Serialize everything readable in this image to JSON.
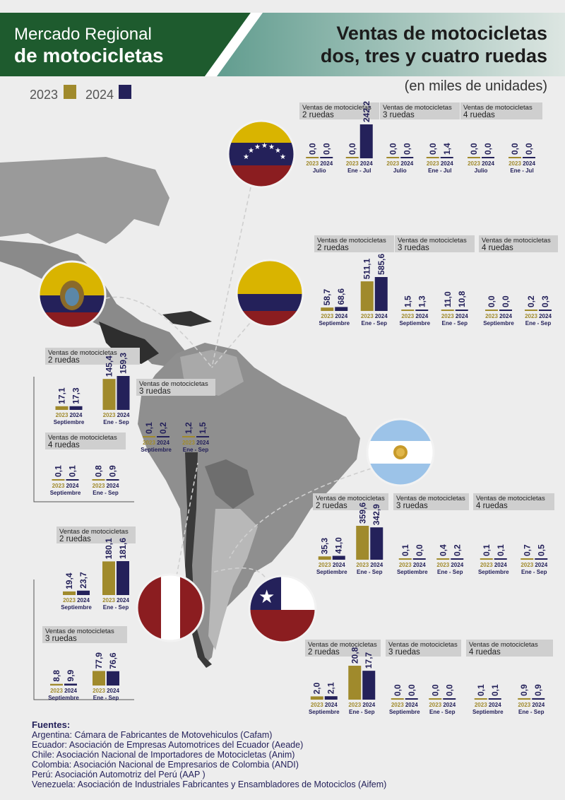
{
  "header": {
    "left_line1": "Mercado Regional",
    "left_line2": "de motocicletas",
    "right_line1": "Ventas de motocicletas",
    "right_line2": "dos, tres y cuatro ruedas",
    "subtitle": "(en miles de unidades)"
  },
  "legend": {
    "y2023": "2023",
    "y2024": "2024"
  },
  "colors": {
    "c2023": "#a08a2c",
    "c2024": "#24215a",
    "green": "#1e5b2e",
    "label_bg": "#cfcfcf",
    "axis_text": "#24215a"
  },
  "chart_data": [
    {
      "country": "Venezuela",
      "type": "bar",
      "groups": [
        {
          "title1": "Ventas de motocicletas",
          "title2": "2 ruedas",
          "periods": [
            {
              "label": "Julio",
              "v2023": "0,0",
              "v2024": "0,0",
              "n2023": 0.0,
              "n2024": 0.0
            },
            {
              "label": "Ene - Jul",
              "v2023": "0,0",
              "v2024": "242,2",
              "n2023": 0.0,
              "n2024": 242.2
            }
          ]
        },
        {
          "title1": "Ventas de motocicletas",
          "title2": "3 ruedas",
          "periods": [
            {
              "label": "Julio",
              "v2023": "0,0",
              "v2024": "0,0",
              "n2023": 0.0,
              "n2024": 0.0
            },
            {
              "label": "Ene - Jul",
              "v2023": "0,0",
              "v2024": "1,4",
              "n2023": 0.0,
              "n2024": 1.4
            }
          ]
        },
        {
          "title1": "Ventas de motocicletas",
          "title2": "4 ruedas",
          "periods": [
            {
              "label": "Julio",
              "v2023": "0,0",
              "v2024": "0,0",
              "n2023": 0.0,
              "n2024": 0.0
            },
            {
              "label": "Ene - Jul",
              "v2023": "0,0",
              "v2024": "0,0",
              "n2023": 0.0,
              "n2024": 0.0
            }
          ]
        }
      ]
    },
    {
      "country": "Colombia",
      "type": "bar",
      "groups": [
        {
          "title1": "Ventas de motocicletas",
          "title2": "2 ruedas",
          "periods": [
            {
              "label": "Septiembre",
              "v2023": "58,7",
              "v2024": "68,6",
              "n2023": 58.7,
              "n2024": 68.6
            },
            {
              "label": "Ene - Sep",
              "v2023": "511,1",
              "v2024": "585,6",
              "n2023": 511.1,
              "n2024": 585.6
            }
          ]
        },
        {
          "title1": "Ventas de motocicletas",
          "title2": "3 ruedas",
          "periods": [
            {
              "label": "Septiembre",
              "v2023": "1,5",
              "v2024": "1,3",
              "n2023": 1.5,
              "n2024": 1.3
            },
            {
              "label": "Ene - Sep",
              "v2023": "11,0",
              "v2024": "10,8",
              "n2023": 11.0,
              "n2024": 10.8
            }
          ]
        },
        {
          "title1": "Ventas de motocicletas",
          "title2": "4 ruedas",
          "periods": [
            {
              "label": "Septiembre",
              "v2023": "0,0",
              "v2024": "0,0",
              "n2023": 0.0,
              "n2024": 0.0
            },
            {
              "label": "Ene - Sep",
              "v2023": "0,2",
              "v2024": "0,3",
              "n2023": 0.2,
              "n2024": 0.3
            }
          ]
        }
      ]
    },
    {
      "country": "Ecuador",
      "type": "bar",
      "groups": [
        {
          "title1": "Ventas de motocicletas",
          "title2": "2 ruedas",
          "periods": [
            {
              "label": "Septiembre",
              "v2023": "17,1",
              "v2024": "17,3",
              "n2023": 17.1,
              "n2024": 17.3
            },
            {
              "label": "Ene - Sep",
              "v2023": "145,4",
              "v2024": "159,3",
              "n2023": 145.4,
              "n2024": 159.3
            }
          ]
        },
        {
          "title1": "Ventas de motocicletas",
          "title2": "3 ruedas",
          "periods": [
            {
              "label": "Septiembre",
              "v2023": "0,1",
              "v2024": "0,2",
              "n2023": 0.1,
              "n2024": 0.2
            },
            {
              "label": "Ene - Sep",
              "v2023": "1,2",
              "v2024": "1,5",
              "n2023": 1.2,
              "n2024": 1.5
            }
          ]
        },
        {
          "title1": "Ventas de motocicletas",
          "title2": "4 ruedas",
          "periods": [
            {
              "label": "Septiembre",
              "v2023": "0,1",
              "v2024": "0,1",
              "n2023": 0.1,
              "n2024": 0.1
            },
            {
              "label": "Ene - Sep",
              "v2023": "0,8",
              "v2024": "0,9",
              "n2023": 0.8,
              "n2024": 0.9
            }
          ]
        }
      ]
    },
    {
      "country": "Argentina",
      "type": "bar",
      "groups": [
        {
          "title1": "Ventas de motocicletas",
          "title2": "2 ruedas",
          "periods": [
            {
              "label": "Septiembre",
              "v2023": "35,3",
              "v2024": "41,0",
              "n2023": 35.3,
              "n2024": 41.0
            },
            {
              "label": "Ene - Sep",
              "v2023": "359,6",
              "v2024": "342,9",
              "n2023": 359.6,
              "n2024": 342.9
            }
          ]
        },
        {
          "title1": "Ventas de motocicletas",
          "title2": "3 ruedas",
          "periods": [
            {
              "label": "Septiembre",
              "v2023": "0,1",
              "v2024": "0,0",
              "n2023": 0.1,
              "n2024": 0.0
            },
            {
              "label": "Ene - Sep",
              "v2023": "0,4",
              "v2024": "0,2",
              "n2023": 0.4,
              "n2024": 0.2
            }
          ]
        },
        {
          "title1": "Ventas de motocicletas",
          "title2": "4 ruedas",
          "periods": [
            {
              "label": "Septiembre",
              "v2023": "0,1",
              "v2024": "0,1",
              "n2023": 0.1,
              "n2024": 0.1
            },
            {
              "label": "Ene - Sep",
              "v2023": "0,7",
              "v2024": "0,5",
              "n2023": 0.7,
              "n2024": 0.5
            }
          ]
        }
      ]
    },
    {
      "country": "Perú",
      "type": "bar",
      "groups": [
        {
          "title1": "Ventas de motocicletas",
          "title2": "2 ruedas",
          "periods": [
            {
              "label": "Septiembre",
              "v2023": "19,4",
              "v2024": "23,7",
              "n2023": 19.4,
              "n2024": 23.7
            },
            {
              "label": "Ene - Sep",
              "v2023": "180,1",
              "v2024": "181,6",
              "n2023": 180.1,
              "n2024": 181.6
            }
          ]
        },
        {
          "title1": "Ventas de motocicletas",
          "title2": "3 ruedas",
          "periods": [
            {
              "label": "Septiembre",
              "v2023": "8,8",
              "v2024": "9,9",
              "n2023": 8.8,
              "n2024": 9.9
            },
            {
              "label": "Ene - Sep",
              "v2023": "77,9",
              "v2024": "76,6",
              "n2023": 77.9,
              "n2024": 76.6
            }
          ]
        }
      ]
    },
    {
      "country": "Chile",
      "type": "bar",
      "groups": [
        {
          "title1": "Ventas de motocicletas",
          "title2": "2 ruedas",
          "periods": [
            {
              "label": "Septiembre",
              "v2023": "2,0",
              "v2024": "2,1",
              "n2023": 2.0,
              "n2024": 2.1
            },
            {
              "label": "Ene - Sep",
              "v2023": "20,8",
              "v2024": "17,7",
              "n2023": 20.8,
              "n2024": 17.7
            }
          ]
        },
        {
          "title1": "Ventas de motocicletas",
          "title2": "3 ruedas",
          "periods": [
            {
              "label": "Septiembre",
              "v2023": "0,0",
              "v2024": "0,0",
              "n2023": 0.0,
              "n2024": 0.0
            },
            {
              "label": "Ene - Sep",
              "v2023": "0,0",
              "v2024": "0,0",
              "n2023": 0.0,
              "n2024": 0.0
            }
          ]
        },
        {
          "title1": "Ventas de motocicletas",
          "title2": "4 ruedas",
          "periods": [
            {
              "label": "Septiembre",
              "v2023": "0,1",
              "v2024": "0,1",
              "n2023": 0.1,
              "n2024": 0.1
            },
            {
              "label": "Ene - Sep",
              "v2023": "0,9",
              "v2024": "0,9",
              "n2023": 0.9,
              "n2024": 0.9
            }
          ]
        }
      ]
    }
  ],
  "sources": {
    "title": "Fuentes:",
    "lines": [
      "Argentina: Cámara de Fabricantes de Motovehiculos (Cafam)",
      "Ecuador: Asociación de Empresas Automotrices del Ecuador (Aeade)",
      "Chile: Asociación Nacional de Importadores de Motocicletas (Anim)",
      "Colombia: Asociación Nacional de Empresarios de Colombia (ANDI)",
      "Perú: Asociación Automotriz del Perú (AAP )",
      "Venezuela: Asociación de Industriales Fabricantes y Ensambladores de Motociclos (Aifem)"
    ]
  }
}
